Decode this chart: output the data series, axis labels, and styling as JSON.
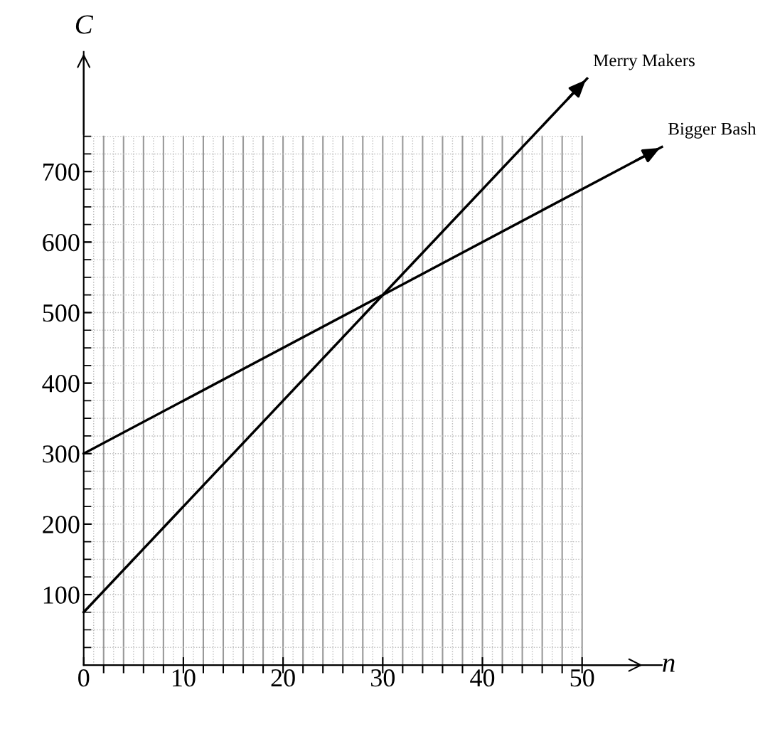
{
  "chart_data": {
    "type": "line",
    "xlabel": "n",
    "ylabel": "C",
    "series": [
      {
        "name": "Merry Makers",
        "color": "#000000",
        "x": [
          0,
          30,
          50.5
        ],
        "values": [
          75,
          525,
          832
        ]
      },
      {
        "name": "Bigger Bash",
        "color": "#000000",
        "x": [
          0,
          30,
          58
        ],
        "values": [
          300,
          525,
          735
        ]
      }
    ],
    "xlim": [
      0,
      58
    ],
    "ylim": [
      0,
      870
    ],
    "xticks": [
      {
        "value": 0,
        "label": "0"
      },
      10,
      20,
      30,
      40,
      50
    ],
    "yticks": [
      100,
      200,
      300,
      400,
      500,
      600,
      700
    ],
    "grid": true,
    "marker": "none",
    "line_style": "solid"
  }
}
